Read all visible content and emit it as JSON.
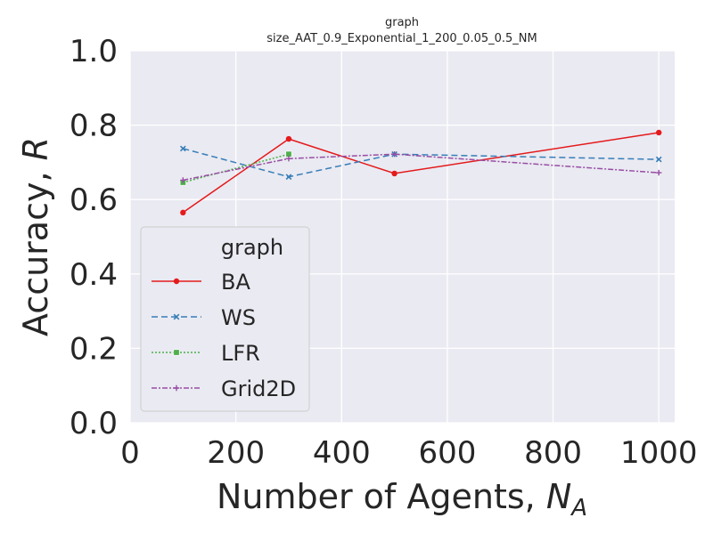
{
  "chart_data": {
    "type": "line",
    "title": "graph",
    "subtitle": "size_AAT_0.9_Exponential_1_200_0.05_0.5_NM",
    "xlabel_text": "Number of Agents, ",
    "xlabel_var": "N",
    "xlabel_sub": "A",
    "ylabel_text": "Accuracy, ",
    "ylabel_var": "R",
    "xlim": [
      0,
      1030
    ],
    "ylim": [
      0.0,
      1.0
    ],
    "xticks": [
      0,
      200,
      400,
      600,
      800,
      1000
    ],
    "xtick_labels": [
      "0",
      "200",
      "400",
      "600",
      "800",
      "1000"
    ],
    "yticks": [
      0.0,
      0.2,
      0.4,
      0.6,
      0.8,
      1.0
    ],
    "ytick_labels": [
      "0.0",
      "0.2",
      "0.4",
      "0.6",
      "0.8",
      "1.0"
    ],
    "grid": true,
    "legend": {
      "title": "graph",
      "placement": "lower-left"
    },
    "series": [
      {
        "name": "BA",
        "color": "#e41a1c",
        "dash": "",
        "marker": "circle",
        "x": [
          100,
          300,
          500,
          1000
        ],
        "y": [
          0.565,
          0.763,
          0.67,
          0.78
        ]
      },
      {
        "name": "WS",
        "color": "#377eb8",
        "dash": "7,4",
        "marker": "x",
        "x": [
          100,
          300,
          500,
          1000
        ],
        "y": [
          0.737,
          0.661,
          0.722,
          0.708
        ]
      },
      {
        "name": "LFR",
        "color": "#4daf4a",
        "dash": "2,2",
        "marker": "square",
        "x": [
          100,
          300
        ],
        "y": [
          0.646,
          0.722
        ]
      },
      {
        "name": "Grid2D",
        "color": "#984ea3",
        "dash": "6,2,2,2",
        "marker": "plus",
        "x": [
          100,
          300,
          500,
          1000
        ],
        "y": [
          0.652,
          0.71,
          0.722,
          0.672
        ]
      }
    ]
  }
}
